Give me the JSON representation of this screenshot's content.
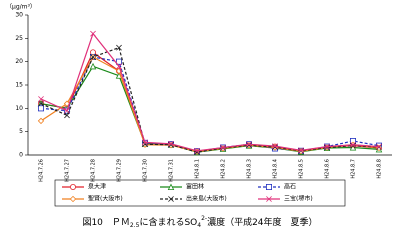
{
  "chart_data": {
    "type": "line",
    "title": [
      {
        "text": "図10　ＰＭ",
        "shift": "none"
      },
      {
        "text": "2.5",
        "shift": "sub"
      },
      {
        "text": "に含まれるSO",
        "shift": "none"
      },
      {
        "text": "4",
        "shift": "sub"
      },
      {
        "text": "2-",
        "shift": "sup"
      },
      {
        "text": "濃度（平成24年度　夏季）",
        "shift": "none"
      }
    ],
    "y_unit": "（μg/m³）",
    "categories": [
      "H24.7.26",
      "H24.7.27",
      "H24.7.28",
      "H24.7.29",
      "H24.7.30",
      "H24.7.31",
      "H24.8.1",
      "H24.8.2",
      "H24.8.3",
      "H24.8.4",
      "H24.8.5",
      "H24.8.6",
      "H24.8.7",
      "H24.8.8"
    ],
    "ylim": [
      0,
      30
    ],
    "yticks": [
      0,
      5,
      10,
      15,
      20,
      25,
      30
    ],
    "series": [
      {
        "name": "泉大津",
        "color": "#e0202a",
        "marker": "circle",
        "dashed": false,
        "values": [
          11,
          10,
          22,
          18,
          2.5,
          2.3,
          0.8,
          1.5,
          2.2,
          1.8,
          0.8,
          1.7,
          2,
          1.5
        ]
      },
      {
        "name": "富田林",
        "color": "#1a8a1a",
        "marker": "triangle",
        "dashed": false,
        "values": [
          11,
          10,
          19,
          17,
          2.4,
          2.2,
          0.6,
          1.3,
          2,
          1.5,
          0.7,
          1.5,
          1.6,
          1.2
        ]
      },
      {
        "name": "高石",
        "color": "#2030c0",
        "marker": "square",
        "dashed": true,
        "values": [
          10,
          9.5,
          21,
          20,
          2.6,
          2.3,
          0.8,
          1.6,
          2.3,
          1.4,
          0.9,
          1.8,
          3,
          2
        ]
      },
      {
        "name": "聖賢(大阪市)",
        "color": "#f08020",
        "marker": "diamond",
        "dashed": false,
        "values": [
          7.3,
          11,
          21,
          18,
          2.2,
          2.1,
          0.7,
          1.4,
          2.1,
          1.6,
          0.8,
          1.6,
          2.2,
          1.5
        ]
      },
      {
        "name": "出来島(大阪市)",
        "color": "#222222",
        "marker": "cross",
        "dashed": true,
        "values": [
          11,
          8.5,
          21,
          23,
          2.3,
          2.2,
          0.6,
          1.5,
          2.1,
          1.7,
          0.9,
          1.6,
          2.0,
          1.7
        ]
      },
      {
        "name": "三宝(堺市)",
        "color": "#e0307a",
        "marker": "cross",
        "dashed": false,
        "values": [
          12,
          9.5,
          26,
          19,
          2.7,
          2.4,
          0.9,
          1.6,
          2.3,
          1.9,
          1.0,
          1.8,
          2.2,
          1.8
        ]
      }
    ]
  }
}
